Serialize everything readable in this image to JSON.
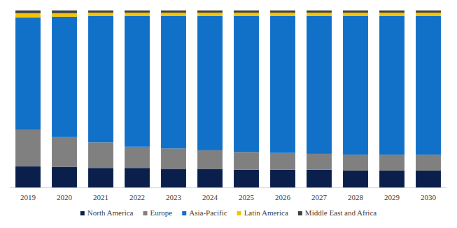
{
  "chart_data": {
    "type": "bar",
    "stacked": true,
    "tick_labels": "x",
    "categories": [
      "2019",
      "2020",
      "2021",
      "2022",
      "2023",
      "2024",
      "2025",
      "2026",
      "2027",
      "2028",
      "2029",
      "2030"
    ],
    "ylim": [
      0,
      100
    ],
    "legend": "bottom",
    "series": [
      {
        "name": "North America",
        "color": "#0b1f4d",
        "values": [
          12,
          11.5,
          11,
          11,
          10.5,
          10.5,
          10,
          10,
          10,
          9.5,
          9.5,
          9.5
        ]
      },
      {
        "name": "Europe",
        "color": "#808080",
        "values": [
          20.5,
          17,
          14.5,
          12,
          11.5,
          10.5,
          10,
          9.5,
          9,
          9,
          9,
          9
        ]
      },
      {
        "name": "Asia-Pacific",
        "color": "#1170c8",
        "values": [
          63.5,
          68,
          71.5,
          74,
          75,
          76,
          77,
          77.5,
          78,
          78.5,
          78.5,
          78.5
        ]
      },
      {
        "name": "Latin America",
        "color": "#f5c400",
        "values": [
          2.5,
          2,
          1.8,
          1.8,
          1.8,
          1.8,
          1.8,
          1.8,
          1.8,
          1.8,
          1.8,
          1.8
        ]
      },
      {
        "name": "Middle East and Africa",
        "color": "#404040",
        "values": [
          1.5,
          1.5,
          1.2,
          1.2,
          1.2,
          1.2,
          1.2,
          1.2,
          1.2,
          1.2,
          1.2,
          1.2
        ]
      }
    ]
  }
}
